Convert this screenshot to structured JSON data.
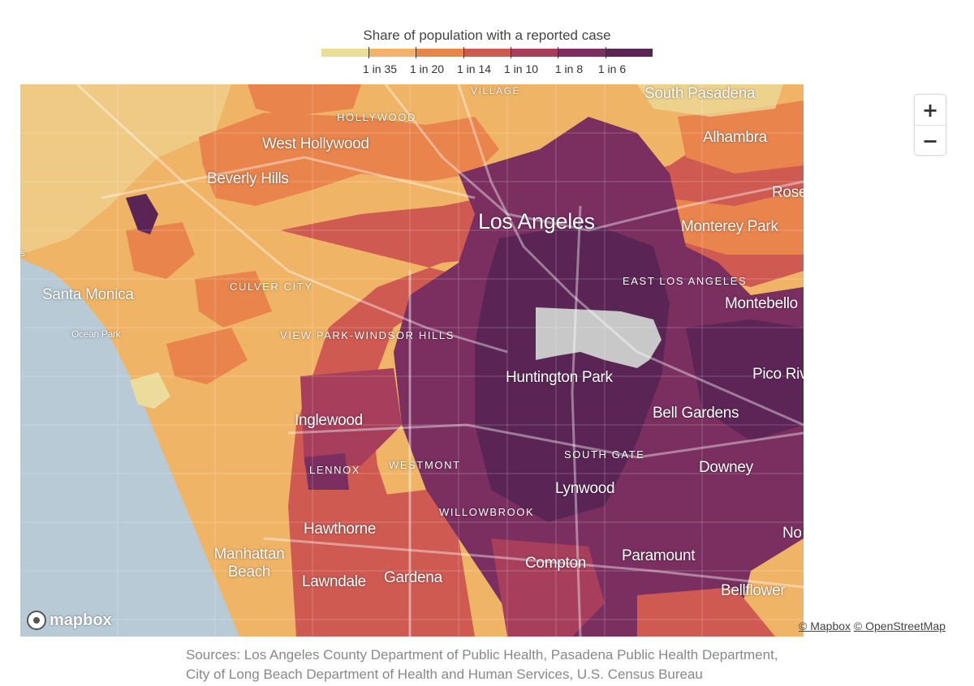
{
  "legend": {
    "title": "Share of population with a reported case",
    "colors": [
      "#ecdc9c",
      "#f0b466",
      "#e8844c",
      "#cf5a52",
      "#a63e5c",
      "#7a2f60",
      "#5a2555"
    ],
    "labels": [
      "1 in 35",
      "1 in 20",
      "1 in 14",
      "1 in 10",
      "1 in 8",
      "1 in 6"
    ]
  },
  "map": {
    "no_data_color": "#c8c8c8",
    "water_color": "#b7cad6",
    "places": {
      "los_angeles": "Los Angeles",
      "south_pasadena": "South Pasadena",
      "alhambra": "Alhambra",
      "hollywood": "HOLLYWOOD",
      "village": "VILLAGE",
      "west_hollywood": "West Hollywood",
      "beverly_hills": "Beverly Hills",
      "rose": "Rose",
      "monterey_park": "Monterey Park",
      "east_los_angeles": "EAST LOS ANGELES",
      "montebello": "Montebello",
      "santa_monica": "Santa Monica",
      "culver_city": "CULVER CITY",
      "ocean_park": "Ocean Park",
      "view_park": "VIEW PARK-WINDSOR HILLS",
      "huntington_park": "Huntington Park",
      "pico_rivera": "Pico Riv",
      "bell_gardens": "Bell Gardens",
      "inglewood": "Inglewood",
      "lennox": "LENNOX",
      "westmont": "WESTMONT",
      "south_gate": "SOUTH GATE",
      "downey": "Downey",
      "lynwood": "Lynwood",
      "willowbrook": "WILLOWBROOK",
      "hawthorne": "Hawthorne",
      "norwalk": "No",
      "compton": "Compton",
      "paramount": "Paramount",
      "manhattan_beach": "Manhattan Beach",
      "lawndale": "Lawndale",
      "gardena": "Gardena",
      "bellflower": "Bellflower",
      "s_fragment": "s"
    },
    "logo_text": "mapbox"
  },
  "zoom": {
    "in_label": "+",
    "out_label": "−"
  },
  "attribution": {
    "mapbox": "© Mapbox",
    "osm": "© OpenStreetMap"
  },
  "sources": "Sources: Los Angeles County Department of Public Health, Pasadena Public Health Department, City of Long Beach Department of Health and Human Services, U.S. Census Bureau"
}
